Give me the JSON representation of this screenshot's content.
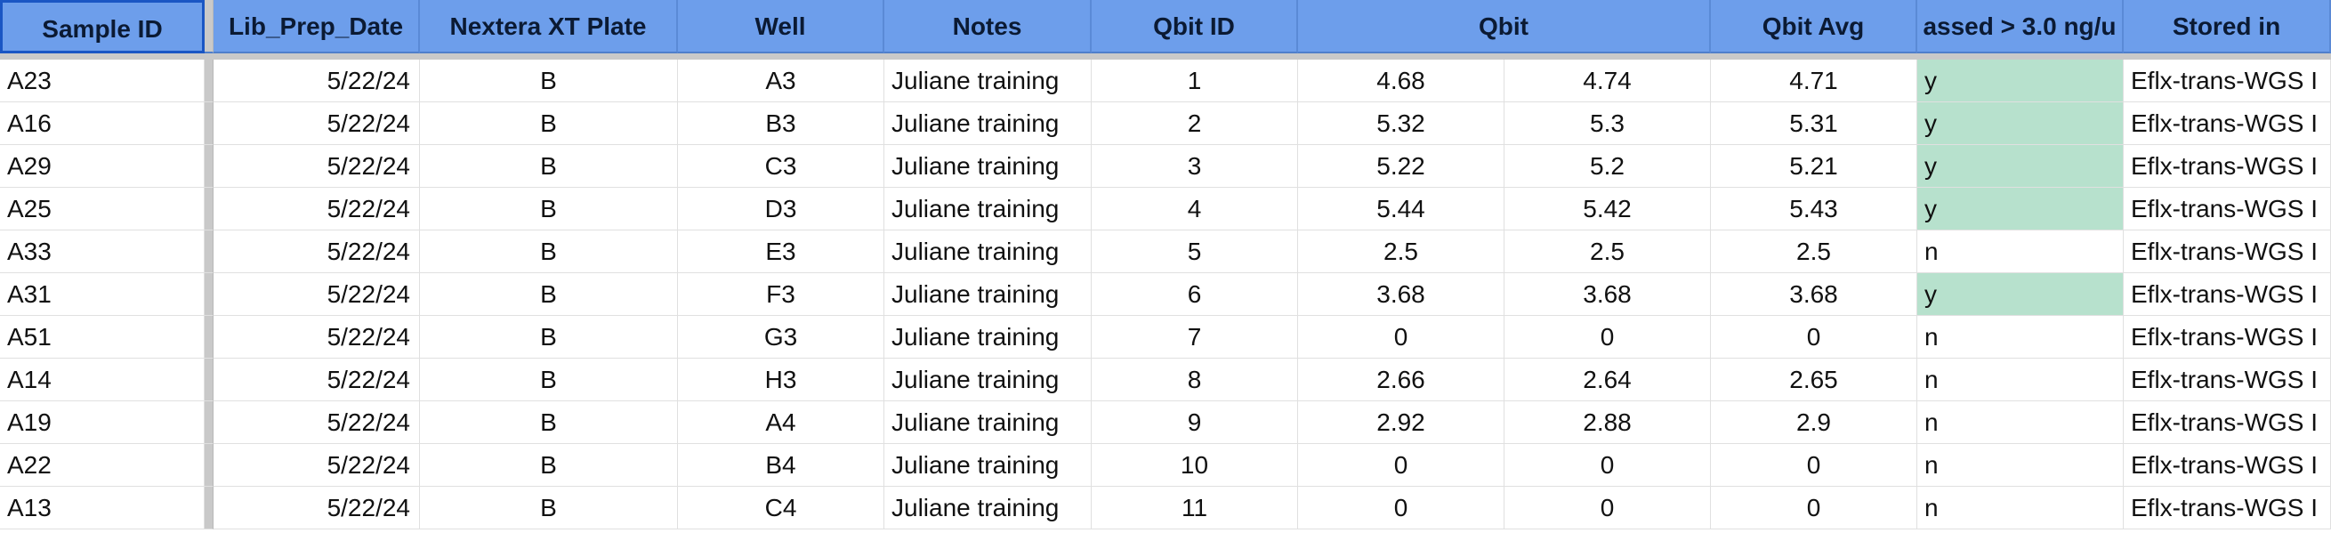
{
  "headers": {
    "sample_id": "Sample ID",
    "lib_prep_date": "Lib_Prep_Date",
    "nextera_plate": "Nextera XT Plate",
    "well": "Well",
    "notes": "Notes",
    "qbit_id": "Qbit ID",
    "qbit": "Qbit",
    "qbit_avg": "Qbit Avg",
    "passed": "assed > 3.0 ng/u",
    "stored_in": "Stored in"
  },
  "rows": [
    {
      "sample_id": "A23",
      "date": "5/22/24",
      "plate": "B",
      "well": "A3",
      "notes": "Juliane training",
      "qbit_id": "1",
      "qbit1": "4.68",
      "qbit2": "4.74",
      "avg": "4.71",
      "passed": "y",
      "stored": "Eflx-trans-WGS I"
    },
    {
      "sample_id": "A16",
      "date": "5/22/24",
      "plate": "B",
      "well": "B3",
      "notes": "Juliane training",
      "qbit_id": "2",
      "qbit1": "5.32",
      "qbit2": "5.3",
      "avg": "5.31",
      "passed": "y",
      "stored": "Eflx-trans-WGS I"
    },
    {
      "sample_id": "A29",
      "date": "5/22/24",
      "plate": "B",
      "well": "C3",
      "notes": "Juliane training",
      "qbit_id": "3",
      "qbit1": "5.22",
      "qbit2": "5.2",
      "avg": "5.21",
      "passed": "y",
      "stored": "Eflx-trans-WGS I"
    },
    {
      "sample_id": "A25",
      "date": "5/22/24",
      "plate": "B",
      "well": "D3",
      "notes": "Juliane training",
      "qbit_id": "4",
      "qbit1": "5.44",
      "qbit2": "5.42",
      "avg": "5.43",
      "passed": "y",
      "stored": "Eflx-trans-WGS I"
    },
    {
      "sample_id": "A33",
      "date": "5/22/24",
      "plate": "B",
      "well": "E3",
      "notes": "Juliane training",
      "qbit_id": "5",
      "qbit1": "2.5",
      "qbit2": "2.5",
      "avg": "2.5",
      "passed": "n",
      "stored": "Eflx-trans-WGS I"
    },
    {
      "sample_id": "A31",
      "date": "5/22/24",
      "plate": "B",
      "well": "F3",
      "notes": "Juliane training",
      "qbit_id": "6",
      "qbit1": "3.68",
      "qbit2": "3.68",
      "avg": "3.68",
      "passed": "y",
      "stored": "Eflx-trans-WGS I"
    },
    {
      "sample_id": "A51",
      "date": "5/22/24",
      "plate": "B",
      "well": "G3",
      "notes": "Juliane training",
      "qbit_id": "7",
      "qbit1": "0",
      "qbit2": "0",
      "avg": "0",
      "passed": "n",
      "stored": "Eflx-trans-WGS I"
    },
    {
      "sample_id": "A14",
      "date": "5/22/24",
      "plate": "B",
      "well": "H3",
      "notes": "Juliane training",
      "qbit_id": "8",
      "qbit1": "2.66",
      "qbit2": "2.64",
      "avg": "2.65",
      "passed": "n",
      "stored": "Eflx-trans-WGS I"
    },
    {
      "sample_id": "A19",
      "date": "5/22/24",
      "plate": "B",
      "well": "A4",
      "notes": "Juliane training",
      "qbit_id": "9",
      "qbit1": "2.92",
      "qbit2": "2.88",
      "avg": "2.9",
      "passed": "n",
      "stored": "Eflx-trans-WGS I"
    },
    {
      "sample_id": "A22",
      "date": "5/22/24",
      "plate": "B",
      "well": "B4",
      "notes": "Juliane training",
      "qbit_id": "10",
      "qbit1": "0",
      "qbit2": "0",
      "avg": "0",
      "passed": "n",
      "stored": "Eflx-trans-WGS I"
    },
    {
      "sample_id": "A13",
      "date": "5/22/24",
      "plate": "B",
      "well": "C4",
      "notes": "Juliane training",
      "qbit_id": "11",
      "qbit1": "0",
      "qbit2": "0",
      "avg": "0",
      "passed": "n",
      "stored": "Eflx-trans-WGS I"
    }
  ],
  "colors": {
    "header_bg": "#6d9eeb",
    "pass_fill": "#b7e1cd",
    "selected_border": "#1a56c4"
  }
}
